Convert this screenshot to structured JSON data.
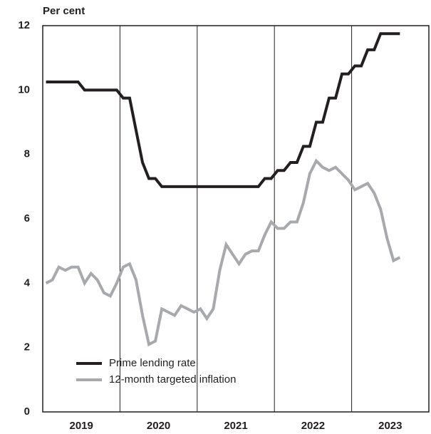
{
  "chart_data": {
    "type": "line",
    "y_label": "Per cent",
    "x": [
      2019.042,
      2019.125,
      2019.208,
      2019.292,
      2019.375,
      2019.458,
      2019.542,
      2019.625,
      2019.708,
      2019.792,
      2019.875,
      2019.958,
      2020.042,
      2020.125,
      2020.208,
      2020.292,
      2020.375,
      2020.458,
      2020.542,
      2020.625,
      2020.708,
      2020.792,
      2020.875,
      2020.958,
      2021.042,
      2021.125,
      2021.208,
      2021.292,
      2021.375,
      2021.458,
      2021.542,
      2021.625,
      2021.708,
      2021.792,
      2021.875,
      2021.958,
      2022.042,
      2022.125,
      2022.208,
      2022.292,
      2022.375,
      2022.458,
      2022.542,
      2022.625,
      2022.708,
      2022.792,
      2022.875,
      2022.958,
      2023.042,
      2023.125,
      2023.208,
      2023.292,
      2023.375,
      2023.458,
      2023.542,
      2023.625
    ],
    "series": [
      {
        "name": "Prime lending rate",
        "color": "#231f20",
        "values": [
          10.25,
          10.25,
          10.25,
          10.25,
          10.25,
          10.25,
          10,
          10,
          10,
          10,
          10,
          10,
          9.75,
          9.75,
          8.75,
          7.75,
          7.25,
          7.25,
          7,
          7,
          7,
          7,
          7,
          7,
          7,
          7,
          7,
          7,
          7,
          7,
          7,
          7,
          7,
          7,
          7.25,
          7.25,
          7.5,
          7.5,
          7.75,
          7.75,
          8.25,
          8.25,
          9,
          9,
          9.75,
          9.75,
          10.5,
          10.5,
          10.75,
          10.75,
          11.25,
          11.25,
          11.75,
          11.75,
          11.75,
          11.75
        ]
      },
      {
        "name": "12-month targeted inflation",
        "color": "#a7a9ac",
        "values": [
          4.0,
          4.1,
          4.5,
          4.4,
          4.5,
          4.5,
          4.0,
          4.3,
          4.1,
          3.7,
          3.6,
          4.0,
          4.5,
          4.6,
          4.1,
          3.0,
          2.1,
          2.2,
          3.2,
          3.1,
          3.0,
          3.3,
          3.2,
          3.1,
          3.2,
          2.9,
          3.2,
          4.4,
          5.2,
          4.9,
          4.6,
          4.9,
          5.0,
          5.0,
          5.5,
          5.9,
          5.7,
          5.7,
          5.9,
          5.9,
          6.5,
          7.4,
          7.8,
          7.6,
          7.5,
          7.6,
          7.4,
          7.2,
          6.9,
          7.0,
          7.1,
          6.8,
          6.3,
          5.4,
          4.7,
          4.8
        ]
      }
    ],
    "xlim": [
      2019,
      2024
    ],
    "xticks": [
      {
        "value": 2019.5,
        "label": "2019"
      },
      {
        "value": 2020.5,
        "label": "2020"
      },
      {
        "value": 2021.5,
        "label": "2021"
      },
      {
        "value": 2022.5,
        "label": "2022"
      },
      {
        "value": 2023.5,
        "label": "2023"
      }
    ],
    "xgrid": [
      2020,
      2021,
      2022,
      2023
    ],
    "ylim": [
      0,
      12
    ],
    "yticks": [
      0,
      2,
      4,
      6,
      8,
      10,
      12
    ],
    "legend": "lower left"
  }
}
